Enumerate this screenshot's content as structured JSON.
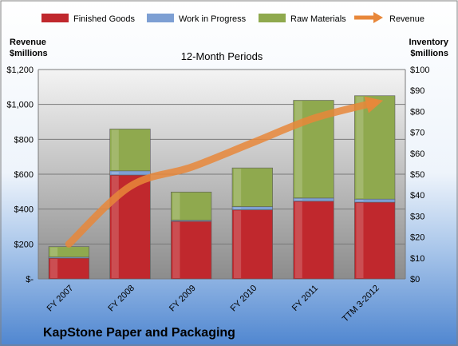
{
  "chart_data": {
    "type": "bar",
    "subtitle": "12-Month Periods",
    "company": "KapStone Paper and Packaging",
    "left_axis": {
      "title_line1": "Revenue",
      "title_line2": "$millions",
      "range": [
        0,
        1200
      ],
      "ticks": [
        0,
        200,
        400,
        600,
        800,
        1000,
        1200
      ],
      "tick_labels": [
        "$-",
        "$200",
        "$400",
        "$600",
        "$800",
        "$1,000",
        "$1,200"
      ]
    },
    "right_axis": {
      "title_line1": "Inventory",
      "title_line2": "$millions",
      "range": [
        0,
        100
      ],
      "ticks": [
        0,
        10,
        20,
        30,
        40,
        50,
        60,
        70,
        80,
        90,
        100
      ],
      "tick_labels": [
        "$0",
        "$10",
        "$20",
        "$30",
        "$40",
        "$50",
        "$60",
        "$70",
        "$80",
        "$90",
        "$100"
      ]
    },
    "categories": [
      "FY 2007",
      "FY 2008",
      "FY 2009",
      "FY 2010",
      "FY 2011",
      "TTM 3-2012"
    ],
    "series": [
      {
        "name": "Finished Goods",
        "axis": "right",
        "color": "#c0282d",
        "values": [
          9.9,
          49.6,
          27.5,
          33,
          37.1,
          36.6
        ]
      },
      {
        "name": "Work in Progress",
        "axis": "right",
        "color": "#7d9fd3",
        "values": [
          0.5,
          2,
          0.5,
          1.5,
          1.5,
          1.5
        ]
      },
      {
        "name": "Raw Materials",
        "axis": "right",
        "color": "#8fa94e",
        "values": [
          5,
          20,
          13.5,
          18.5,
          46.7,
          49.4
        ]
      },
      {
        "name": "Revenue",
        "axis": "left",
        "type": "line",
        "color": "#e8873a",
        "values": [
          200,
          530,
          640,
          780,
          920,
          1010
        ]
      }
    ],
    "legend": "top"
  }
}
